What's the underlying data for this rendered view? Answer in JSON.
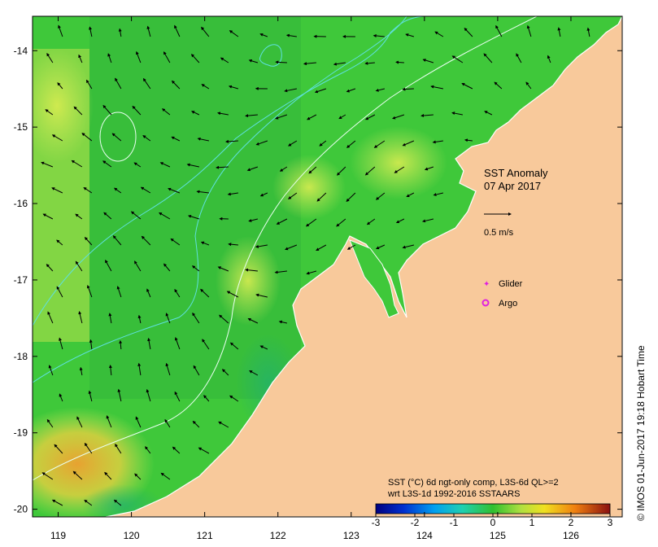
{
  "map": {
    "title": "SST Anomaly",
    "date": "07 Apr 2017",
    "scale_arrow_label": "0.5 m/s",
    "legend": {
      "glider": "Glider",
      "argo": "Argo"
    },
    "colorbar": {
      "caption_line1": "SST (°C) 6d ngt-only comp, L3S-6d QL>=2",
      "caption_line2": "wrt L3S-1d 1992-2016 SSTAARS",
      "min": -3,
      "max": 3,
      "ticks": [
        "-3",
        "-2",
        "-1",
        "0",
        "1",
        "2",
        "3"
      ]
    },
    "credit": "© IMOS 01-Jun-2017 19:18 Hobart Time",
    "axes": {
      "lon_ticks": [
        "119",
        "120",
        "121",
        "122",
        "123",
        "124",
        "125",
        "126"
      ],
      "lat_ticks": [
        "-14",
        "-15",
        "-16",
        "-17",
        "-18",
        "-19",
        "-20"
      ],
      "lon_range": [
        118.65,
        126.7
      ],
      "lat_range": [
        -20.1,
        -13.55
      ]
    },
    "colors": {
      "land": "#f8c99b",
      "ocean_base": "#3fc83a",
      "warm_patch": "#c8e85a",
      "hot_patch": "#f0a030",
      "contour_cyan": "#5fe0e0",
      "contour_white": "#e8fff0",
      "current_arrows": "#000000",
      "glider_marker": "#e020e0",
      "argo_marker": "#e020e0"
    }
  }
}
